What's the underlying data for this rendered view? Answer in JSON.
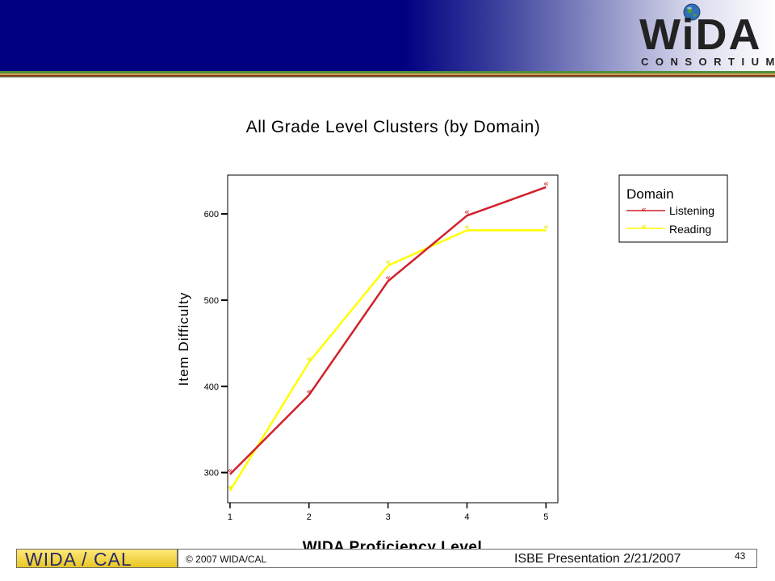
{
  "logo": {
    "main": "WiDA",
    "sub": "CONSORTIUM",
    "globe_icon": "globe-icon"
  },
  "footer": {
    "brand": "WIDA / CAL",
    "copyright": "© 2007 WIDA/CAL",
    "presentation": "ISBE Presentation 2/21/2007",
    "page_number": "43"
  },
  "colors": {
    "header_navy": "#000080",
    "listening": "#d0202a",
    "reading": "#ffff00",
    "brand_yellow": "#f2d33a"
  },
  "chart_data": {
    "type": "line",
    "title": "All Grade Level Clusters (by Domain)",
    "xlabel": "WIDA Proficiency Level",
    "ylabel": "Item Difficulty",
    "x": [
      1,
      2,
      3,
      4,
      5
    ],
    "xticks": [
      "1",
      "2",
      "3",
      "4",
      "5"
    ],
    "yticks": [
      "300",
      "400",
      "500",
      "600"
    ],
    "ytick_values": [
      300,
      400,
      500,
      600
    ],
    "xlim": [
      0.97,
      5.15
    ],
    "ylim": [
      265,
      645
    ],
    "legend_title": "Domain",
    "legend_position": "right",
    "grid": false,
    "series": [
      {
        "name": "Listening",
        "color": "#d0202a",
        "values": [
          298,
          390,
          522,
          598,
          631
        ]
      },
      {
        "name": "Reading",
        "color": "#ffff00",
        "values": [
          279,
          428,
          540,
          581,
          581
        ]
      }
    ]
  }
}
